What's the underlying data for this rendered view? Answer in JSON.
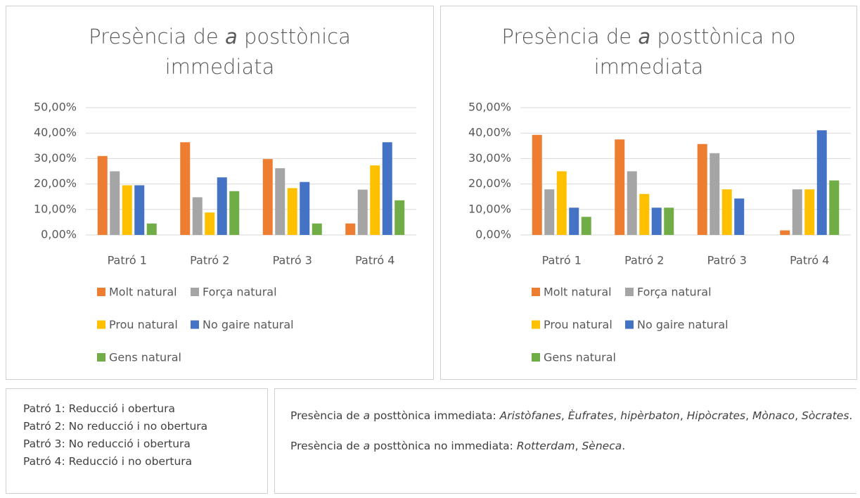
{
  "chart_data": [
    {
      "type": "bar",
      "title": [
        {
          "text": "Presència de "
        },
        {
          "text": "a",
          "style": "italic"
        },
        {
          "text": " posttònica immediata"
        }
      ],
      "categories": [
        "Patró 1",
        "Patró 2",
        "Patró 3",
        "Patró 4"
      ],
      "series": [
        {
          "name": "Molt natural",
          "color": "#ed7d31",
          "values": [
            31,
            36.4,
            29.8,
            4.5
          ]
        },
        {
          "name": "Força natural",
          "color": "#a5a5a5",
          "values": [
            25,
            14.8,
            26.2,
            17.8
          ]
        },
        {
          "name": "Prou natural",
          "color": "#ffc000",
          "values": [
            19.5,
            8.8,
            18.4,
            27.3
          ]
        },
        {
          "name": "No gaire natural",
          "color": "#4472c4",
          "values": [
            19.5,
            22.6,
            20.8,
            36.4
          ]
        },
        {
          "name": "Gens natural",
          "color": "#70ad47",
          "values": [
            4.5,
            17.2,
            4.5,
            13.6
          ]
        }
      ],
      "ylim": [
        0,
        50
      ],
      "yticks": [
        {
          "value": 0,
          "label": "0,00%"
        },
        {
          "value": 10,
          "label": "10,00%"
        },
        {
          "value": 20,
          "label": "20,00%"
        },
        {
          "value": 30,
          "label": "30,00%"
        },
        {
          "value": 40,
          "label": "40,00%"
        },
        {
          "value": 50,
          "label": "50,00%"
        }
      ],
      "grid": true,
      "legend": "bottom"
    },
    {
      "type": "bar",
      "title": [
        {
          "text": "Presència de "
        },
        {
          "text": "a",
          "style": "italic"
        },
        {
          "text": " posttònica no immediata"
        }
      ],
      "categories": [
        "Patró 1",
        "Patró 2",
        "Patró 3",
        "Patró 4"
      ],
      "series": [
        {
          "name": "Molt natural",
          "color": "#ed7d31",
          "values": [
            39.3,
            37.5,
            35.7,
            1.8
          ]
        },
        {
          "name": "Força natural",
          "color": "#a5a5a5",
          "values": [
            17.9,
            25,
            32.1,
            17.9
          ]
        },
        {
          "name": "Prou natural",
          "color": "#ffc000",
          "values": [
            25,
            16.1,
            17.9,
            17.9
          ]
        },
        {
          "name": "No gaire natural",
          "color": "#4472c4",
          "values": [
            10.7,
            10.7,
            14.3,
            41.1
          ]
        },
        {
          "name": "Gens natural",
          "color": "#70ad47",
          "values": [
            7.1,
            10.7,
            0,
            21.4
          ]
        }
      ],
      "ylim": [
        0,
        50
      ],
      "yticks": [
        {
          "value": 0,
          "label": "0,00%"
        },
        {
          "value": 10,
          "label": "10,00%"
        },
        {
          "value": 20,
          "label": "20,00%"
        },
        {
          "value": 30,
          "label": "30,00%"
        },
        {
          "value": 40,
          "label": "40,00%"
        },
        {
          "value": 50,
          "label": "50,00%"
        }
      ],
      "grid": true,
      "legend": "bottom"
    }
  ],
  "patterns": [
    "Patró 1: Reducció i obertura",
    "Patró 2: No reducció i no obertura",
    "Patró 3: No reducció i obertura",
    "Patró 4: Reducció i no obertura"
  ],
  "notes": [
    [
      {
        "text": "Presència de "
      },
      {
        "text": "a",
        "style": "italic"
      },
      {
        "text": " posttònica immediata: "
      },
      {
        "text": "Aristòfanes",
        "style": "italic"
      },
      {
        "text": ", "
      },
      {
        "text": "Èufrates",
        "style": "italic"
      },
      {
        "text": ", "
      },
      {
        "text": "hipèrbaton",
        "style": "italic"
      },
      {
        "text": ", "
      },
      {
        "text": "Hipòcrates",
        "style": "italic"
      },
      {
        "text": ", "
      },
      {
        "text": "Mònaco",
        "style": "italic"
      },
      {
        "text": ", "
      },
      {
        "text": "Sòcrates",
        "style": "italic"
      },
      {
        "text": "."
      }
    ],
    [
      {
        "text": "Presència de "
      },
      {
        "text": "a",
        "style": "italic"
      },
      {
        "text": " posttònica no immediata: "
      },
      {
        "text": "Rotterdam",
        "style": "italic"
      },
      {
        "text": ", "
      },
      {
        "text": "Sèneca",
        "style": "italic"
      },
      {
        "text": "."
      }
    ]
  ]
}
